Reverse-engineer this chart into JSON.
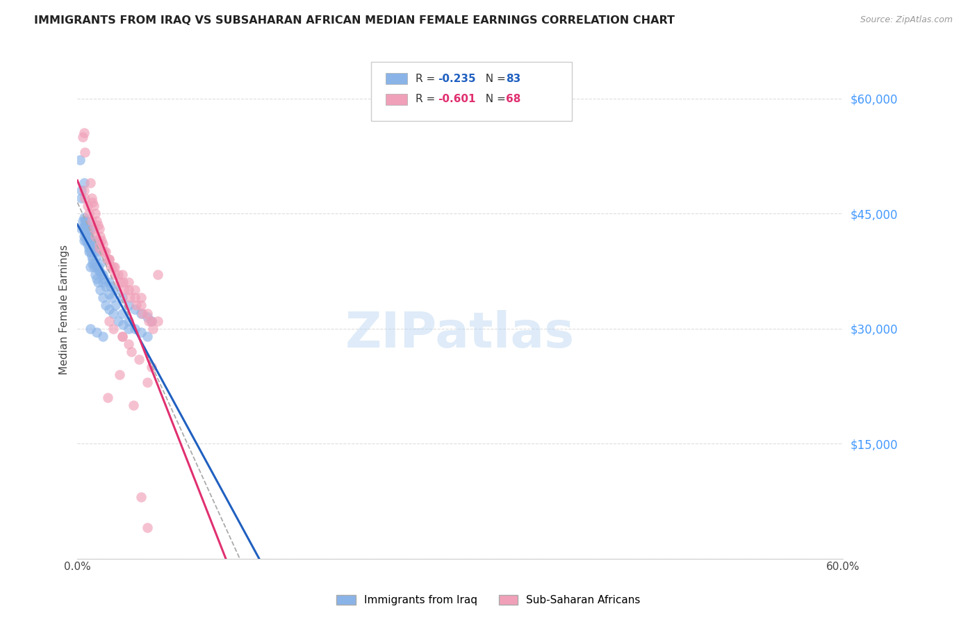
{
  "title": "IMMIGRANTS FROM IRAQ VS SUBSAHARAN AFRICAN MEDIAN FEMALE EARNINGS CORRELATION CHART",
  "source": "Source: ZipAtlas.com",
  "ylabel": "Median Female Earnings",
  "yticks": [
    0,
    15000,
    30000,
    45000,
    60000
  ],
  "ytick_labels": [
    "",
    "$15,000",
    "$30,000",
    "$45,000",
    "$60,000"
  ],
  "ytick_color": "#4499ff",
  "xmin": 0.0,
  "xmax": 60.0,
  "ymin": 0,
  "ymax": 65000,
  "iraq_color": "#8ab4e8",
  "iraq_line_color": "#2060c0",
  "subsaharan_color": "#f0a0b8",
  "subsaharan_line_color": "#e03070",
  "dash_color": "#aaaaaa",
  "watermark": "ZIPatlas",
  "background_color": "#ffffff",
  "grid_color": "#dddddd",
  "title_fontsize": 11.5,
  "iraq_points": [
    [
      0.2,
      52000
    ],
    [
      0.3,
      48000
    ],
    [
      0.3,
      47000
    ],
    [
      0.5,
      49000
    ],
    [
      0.5,
      44500
    ],
    [
      0.6,
      44000
    ],
    [
      0.6,
      43500
    ],
    [
      0.7,
      44000
    ],
    [
      0.7,
      43000
    ],
    [
      0.8,
      43500
    ],
    [
      0.8,
      43000
    ],
    [
      0.9,
      42500
    ],
    [
      0.9,
      42000
    ],
    [
      1.0,
      43000
    ],
    [
      1.0,
      41500
    ],
    [
      1.1,
      41000
    ],
    [
      1.2,
      40500
    ],
    [
      1.3,
      41500
    ],
    [
      1.4,
      40000
    ],
    [
      1.5,
      39500
    ],
    [
      1.6,
      38000
    ],
    [
      1.7,
      37500
    ],
    [
      1.8,
      38500
    ],
    [
      1.9,
      37000
    ],
    [
      2.0,
      36000
    ],
    [
      2.2,
      35500
    ],
    [
      2.5,
      34500
    ],
    [
      2.7,
      34000
    ],
    [
      3.0,
      33000
    ],
    [
      3.5,
      32000
    ],
    [
      4.0,
      31000
    ],
    [
      4.5,
      30000
    ],
    [
      5.0,
      29500
    ],
    [
      5.5,
      29000
    ],
    [
      0.5,
      43000
    ],
    [
      0.6,
      42500
    ],
    [
      0.7,
      42000
    ],
    [
      0.8,
      41000
    ],
    [
      0.9,
      40500
    ],
    [
      1.0,
      40000
    ],
    [
      1.1,
      39500
    ],
    [
      1.2,
      38500
    ],
    [
      1.3,
      38000
    ],
    [
      1.4,
      37000
    ],
    [
      1.5,
      36500
    ],
    [
      1.6,
      36000
    ],
    [
      1.8,
      35000
    ],
    [
      2.0,
      34000
    ],
    [
      2.2,
      33000
    ],
    [
      2.5,
      32500
    ],
    [
      2.8,
      32000
    ],
    [
      3.2,
      31000
    ],
    [
      3.6,
      30500
    ],
    [
      4.0,
      30000
    ],
    [
      0.4,
      44000
    ],
    [
      0.6,
      43500
    ],
    [
      0.9,
      41000
    ],
    [
      1.1,
      40500
    ],
    [
      1.4,
      38500
    ],
    [
      1.7,
      37500
    ],
    [
      2.1,
      36500
    ],
    [
      2.6,
      35500
    ],
    [
      0.5,
      42000
    ],
    [
      0.7,
      41500
    ],
    [
      0.9,
      40000
    ],
    [
      1.2,
      39000
    ],
    [
      1.5,
      38000
    ],
    [
      2.0,
      37000
    ],
    [
      2.5,
      36000
    ],
    [
      3.0,
      35000
    ],
    [
      3.5,
      34000
    ],
    [
      4.0,
      33000
    ],
    [
      4.5,
      32500
    ],
    [
      5.0,
      32000
    ],
    [
      5.5,
      31500
    ],
    [
      5.8,
      31000
    ],
    [
      1.0,
      30000
    ],
    [
      1.5,
      29500
    ],
    [
      2.0,
      29000
    ],
    [
      0.3,
      43000
    ],
    [
      0.5,
      41500
    ],
    [
      1.0,
      38000
    ]
  ],
  "subsaharan_points": [
    [
      0.4,
      55000
    ],
    [
      0.5,
      55500
    ],
    [
      0.6,
      53000
    ],
    [
      1.0,
      49000
    ],
    [
      1.1,
      47000
    ],
    [
      1.2,
      46500
    ],
    [
      1.3,
      46000
    ],
    [
      1.4,
      45000
    ],
    [
      1.5,
      44000
    ],
    [
      1.6,
      43500
    ],
    [
      1.7,
      43000
    ],
    [
      1.8,
      42000
    ],
    [
      1.9,
      41500
    ],
    [
      2.0,
      41000
    ],
    [
      2.2,
      40000
    ],
    [
      2.5,
      39000
    ],
    [
      2.8,
      38000
    ],
    [
      3.2,
      37000
    ],
    [
      3.6,
      36000
    ],
    [
      4.0,
      35000
    ],
    [
      4.5,
      34000
    ],
    [
      5.0,
      33000
    ],
    [
      5.5,
      32000
    ],
    [
      5.8,
      31000
    ],
    [
      0.5,
      48000
    ],
    [
      0.8,
      46000
    ],
    [
      1.1,
      44000
    ],
    [
      1.4,
      42000
    ],
    [
      1.7,
      40500
    ],
    [
      2.0,
      40000
    ],
    [
      2.3,
      39000
    ],
    [
      2.6,
      38000
    ],
    [
      2.9,
      37000
    ],
    [
      3.3,
      36000
    ],
    [
      3.7,
      35000
    ],
    [
      4.1,
      34000
    ],
    [
      4.6,
      33000
    ],
    [
      5.1,
      32000
    ],
    [
      5.6,
      31000
    ],
    [
      5.9,
      30000
    ],
    [
      0.6,
      47000
    ],
    [
      0.9,
      45000
    ],
    [
      1.3,
      43000
    ],
    [
      1.7,
      41000
    ],
    [
      2.1,
      40000
    ],
    [
      2.5,
      39000
    ],
    [
      2.9,
      38000
    ],
    [
      3.5,
      37000
    ],
    [
      4.0,
      36000
    ],
    [
      4.5,
      35000
    ],
    [
      5.0,
      34000
    ],
    [
      3.5,
      29000
    ],
    [
      4.0,
      28000
    ],
    [
      2.5,
      31000
    ],
    [
      2.8,
      30000
    ],
    [
      3.5,
      29000
    ],
    [
      4.2,
      27000
    ],
    [
      4.8,
      26000
    ],
    [
      5.8,
      25000
    ],
    [
      3.3,
      24000
    ],
    [
      5.5,
      23000
    ],
    [
      2.4,
      21000
    ],
    [
      4.4,
      20000
    ],
    [
      5.0,
      8000
    ],
    [
      5.5,
      4000
    ],
    [
      6.3,
      37000
    ],
    [
      6.3,
      31000
    ]
  ]
}
